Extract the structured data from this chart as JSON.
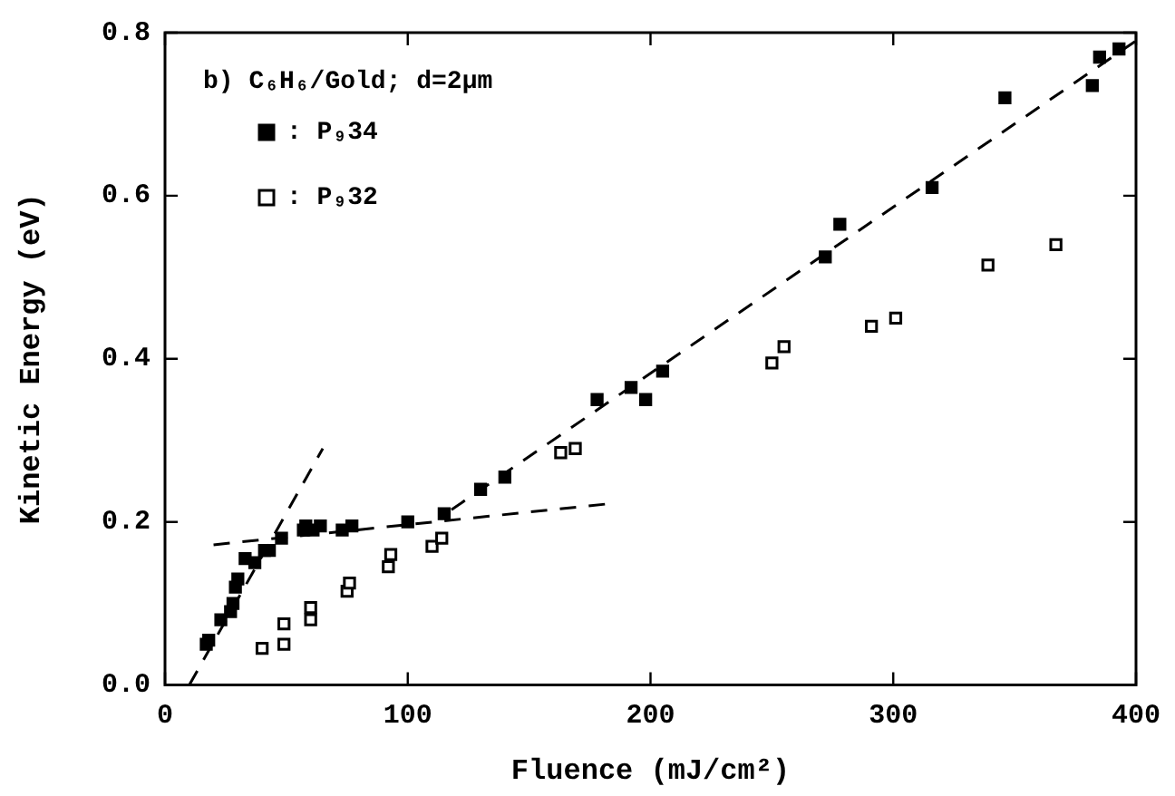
{
  "chart_data": {
    "type": "scatter",
    "xlabel": "Fluence (mJ/cm²)",
    "ylabel": "Kinetic Energy (eV)",
    "annotations": [
      "b) C₆H₆/Gold; d=2μm"
    ],
    "xlim": [
      0,
      400
    ],
    "xticks": [
      0,
      100,
      200,
      300,
      400
    ],
    "ylim": [
      0,
      0.8
    ],
    "yticks": [
      {
        "value": 0,
        "label": "0.0"
      },
      {
        "value": 0.2,
        "label": "0.2"
      },
      {
        "value": 0.4,
        "label": "0.4"
      },
      {
        "value": 0.6,
        "label": "0.6"
      },
      {
        "value": 0.8,
        "label": "0.8"
      }
    ],
    "grid": false,
    "legend": "top left",
    "marker": "square",
    "series": [
      {
        "name": ": P₉34",
        "type": "scatter",
        "color": "#000000",
        "x": [
          17,
          18,
          23,
          27,
          28,
          29,
          30,
          33,
          37,
          41,
          43,
          48,
          57,
          58,
          61,
          64,
          73,
          77,
          100,
          115,
          130,
          140,
          178,
          192,
          198,
          205,
          272,
          278,
          316,
          346,
          382,
          385,
          393
        ],
        "values": [
          0.05,
          0.055,
          0.08,
          0.09,
          0.1,
          0.12,
          0.13,
          0.155,
          0.15,
          0.165,
          0.165,
          0.18,
          0.19,
          0.195,
          0.19,
          0.195,
          0.19,
          0.195,
          0.2,
          0.21,
          0.24,
          0.255,
          0.35,
          0.365,
          0.35,
          0.385,
          0.525,
          0.565,
          0.61,
          0.72,
          0.735,
          0.77,
          0.78
        ]
      },
      {
        "name": ": P₉32",
        "type": "scatter",
        "color": "#000000",
        "x": [
          40,
          49,
          49,
          60,
          60,
          75,
          76,
          92,
          93,
          110,
          114,
          163,
          169,
          250,
          255,
          291,
          301,
          339,
          367
        ],
        "values": [
          0.045,
          0.05,
          0.075,
          0.08,
          0.095,
          0.115,
          0.125,
          0.145,
          0.16,
          0.17,
          0.18,
          0.285,
          0.29,
          0.395,
          0.415,
          0.44,
          0.45,
          0.515,
          0.54
        ]
      },
      {
        "type": "line",
        "marker": "none",
        "color": "#000000",
        "line_style": "dashed",
        "x": [
          10,
          65
        ],
        "values": [
          0,
          0.29
        ]
      },
      {
        "type": "line",
        "marker": "none",
        "color": "#000000",
        "line_style": "dashed",
        "x": [
          20,
          182
        ],
        "values": [
          0.172,
          0.222
        ]
      },
      {
        "type": "line",
        "marker": "none",
        "color": "#000000",
        "line_style": "dashed",
        "x": [
          118,
          400
        ],
        "values": [
          0.215,
          0.79
        ]
      }
    ]
  }
}
